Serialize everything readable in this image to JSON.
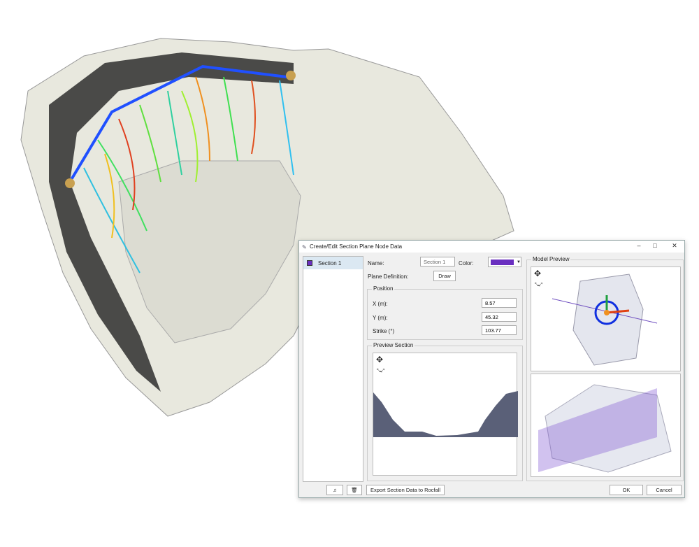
{
  "dialog": {
    "title": "Create/Edit Section Plane Node Data",
    "sections": [
      {
        "label": "Section 1",
        "color": "#6a2fc0"
      }
    ],
    "name_label": "Name:",
    "name_value": "Section 1",
    "color_label": "Color:",
    "color_value": "#6a2fc0",
    "plane_definition_label": "Plane Definition:",
    "draw_label": "Draw",
    "position": {
      "title": "Position",
      "x_label": "X (m):",
      "x_value": "8.57",
      "y_label": "Y (m):",
      "y_value": "45.32",
      "strike_label": "Strike (°)",
      "strike_value": "103.77"
    },
    "preview_section_title": "Preview Section",
    "model_preview_title": "Model Preview",
    "export_label": "Export Section Data to Rocfall",
    "ok_label": "OK",
    "cancel_label": "Cancel"
  }
}
